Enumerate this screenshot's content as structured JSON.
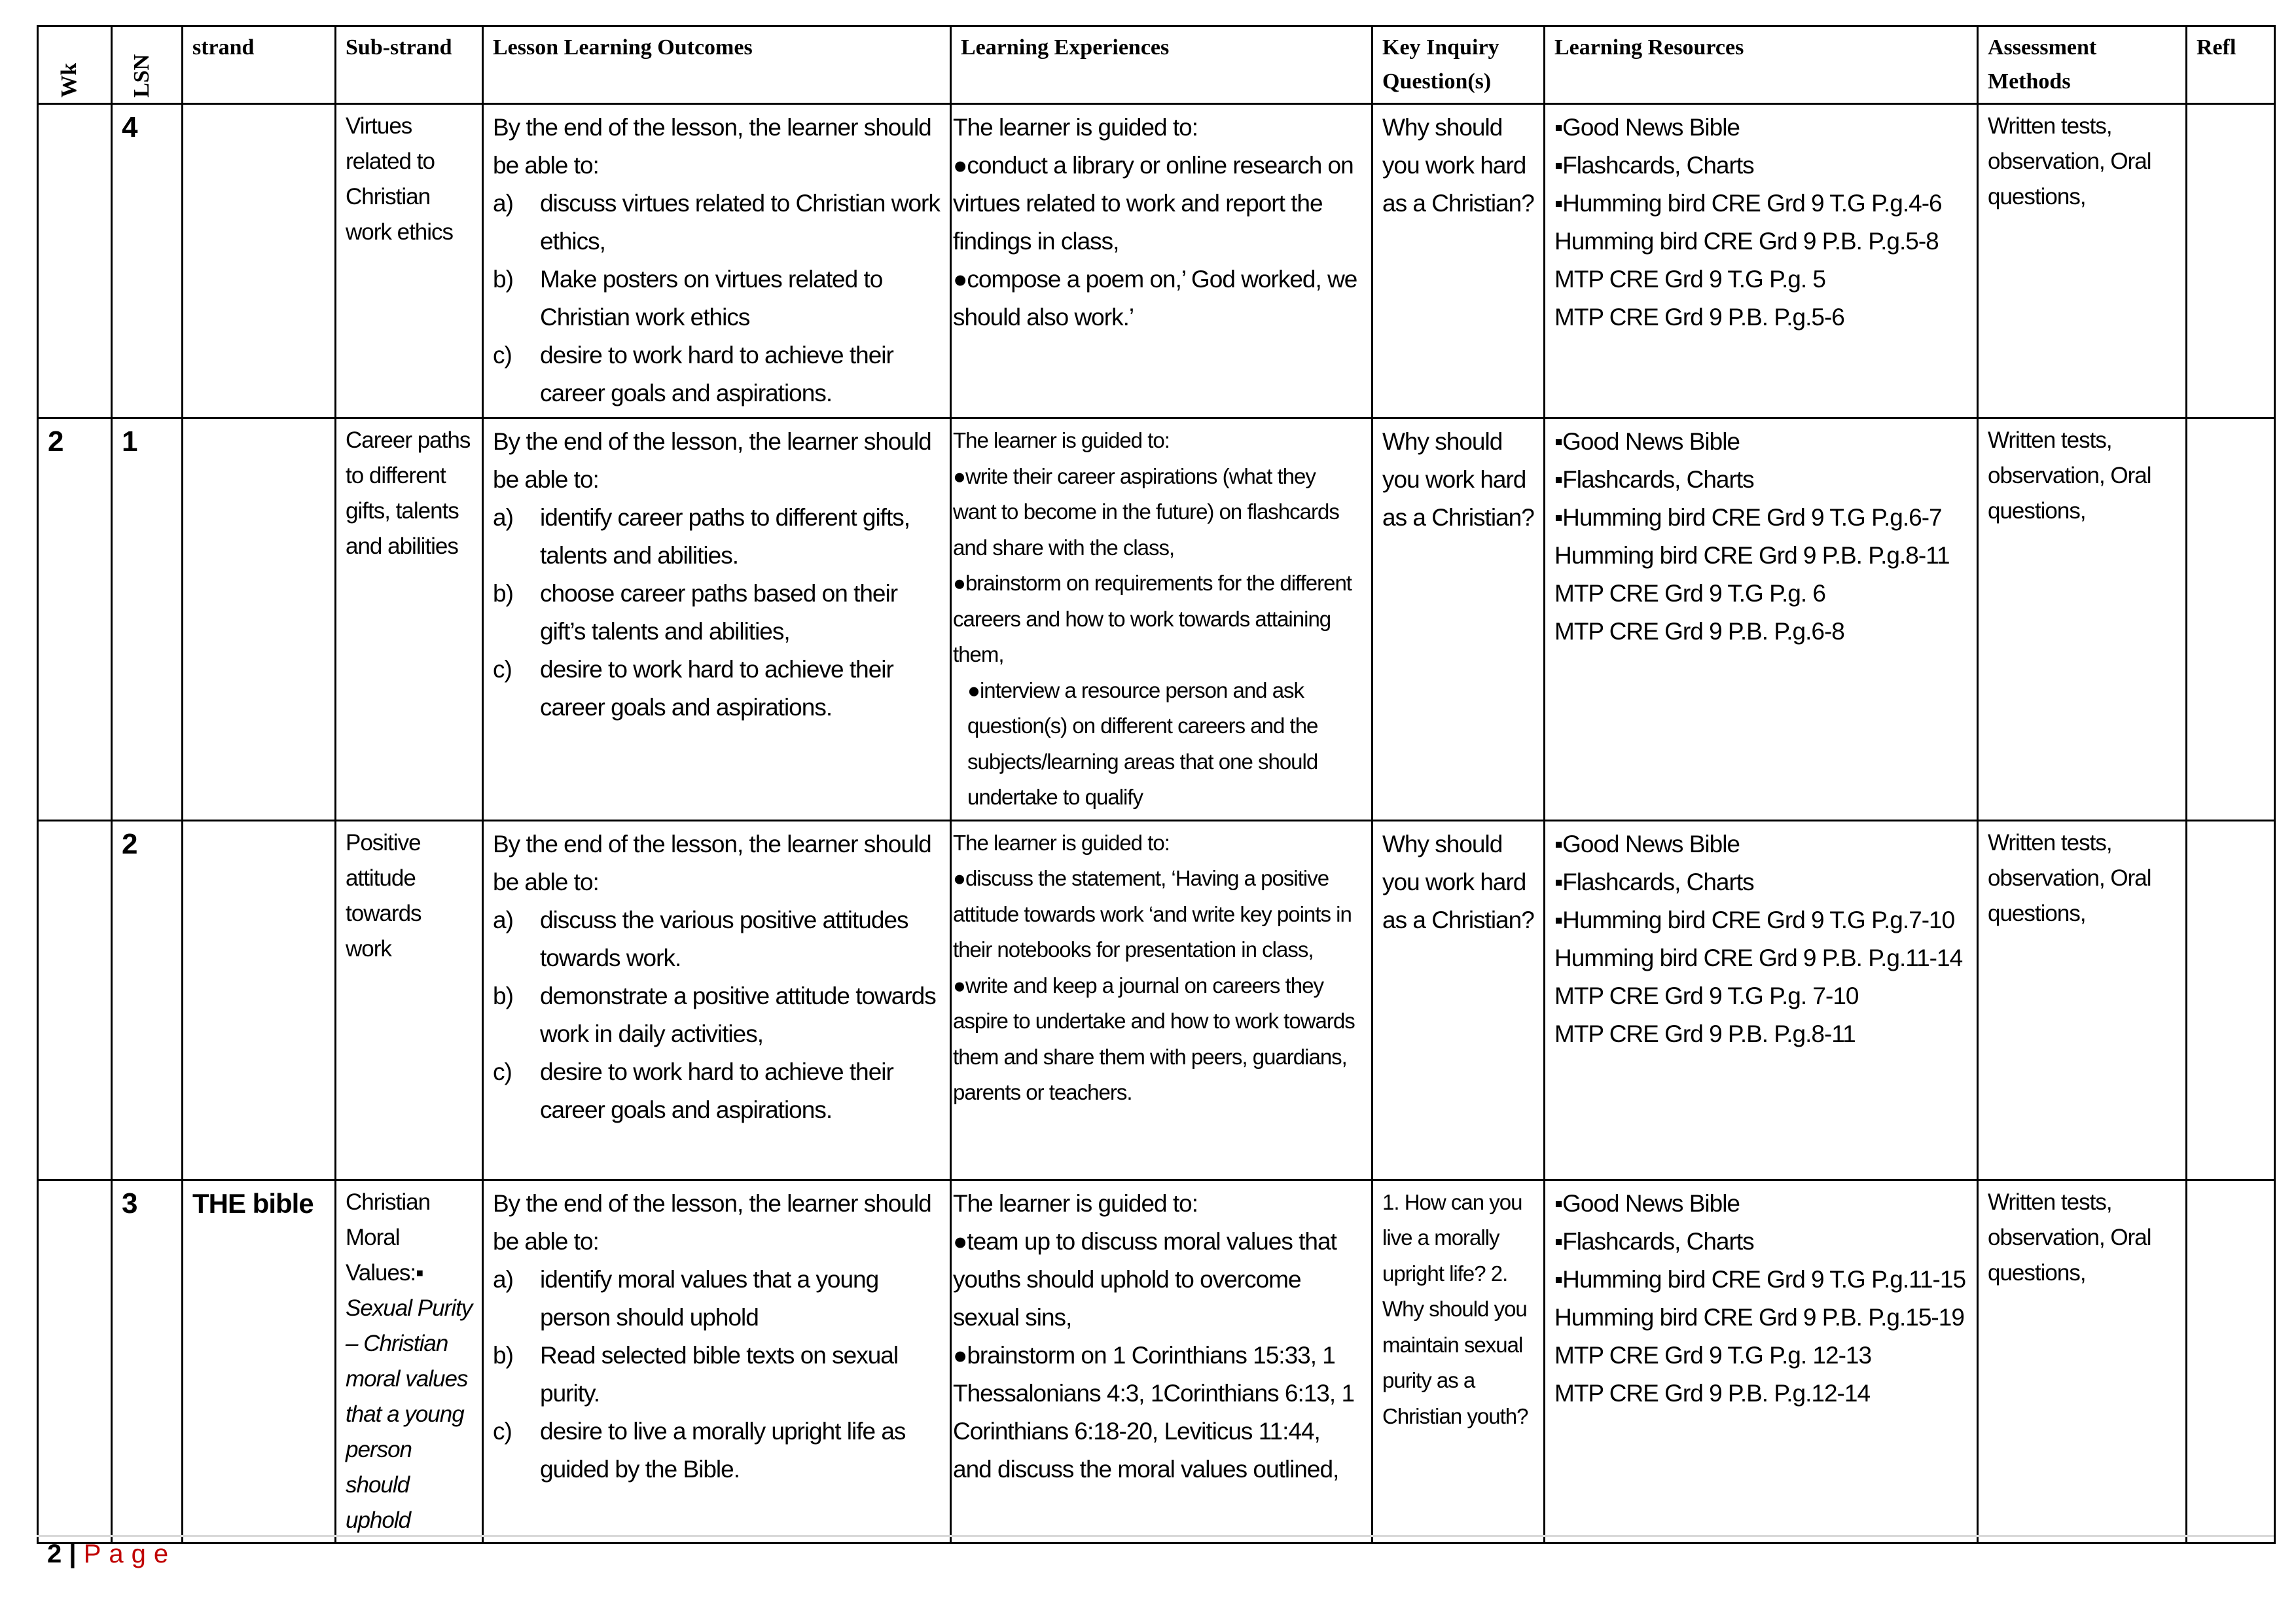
{
  "headers": [
    "Wk",
    "LSN",
    "strand",
    "Sub-strand",
    "Lesson Learning Outcomes",
    "Learning Experiences",
    "Key Inquiry Question(s)",
    "Learning Resources",
    "Assessment Methods",
    "Refl"
  ],
  "rows": [
    {
      "wk": "",
      "lsn": "4",
      "strand": "",
      "substrand": [
        "Virtues related to Christian work ethics"
      ],
      "lo_intro": "By the end of the lesson, the learner should be able to:",
      "lo": [
        {
          "l": "a)",
          "t": "discuss virtues related to Christian work ethics,"
        },
        {
          "l": "b)",
          "t": "Make posters on virtues related to Christian work ethics"
        },
        {
          "l": "c)",
          "t": "desire to work hard to achieve their career goals and aspirations."
        }
      ],
      "le_intro": "The learner is guided to:",
      "le": [
        "conduct a library or online research on virtues related to work and report the findings in class,",
        "compose a poem on,’ God worked, we should also work.’"
      ],
      "kiq": "Why should you work hard as a Christian?",
      "res_bullets": [
        "Good News Bible",
        "Flashcards, Charts",
        "Humming bird CRE Grd 9 T.G P.g.4-6"
      ],
      "res_lines": [
        "Humming bird CRE Grd 9 P.B. P.g.5-8",
        "MTP  CRE Grd 9 T.G P.g. 5",
        "MTP  CRE Grd 9 P.B. P.g.5-6"
      ],
      "assess": "Written tests, observation, Oral questions,"
    },
    {
      "wk": "2",
      "lsn": "1",
      "strand": "",
      "substrand": [
        "Career paths to different gifts, talents and abilities"
      ],
      "lo_intro": "By the end of the lesson, the learner should be able to:",
      "lo": [
        {
          "l": "a)",
          "t": "identify career paths to different gifts, talents and abilities."
        },
        {
          "l": "b)",
          "t": "choose career paths based on their gift’s talents and abilities,"
        },
        {
          "l": "c)",
          "t": "desire to work hard to achieve their career goals and aspirations."
        }
      ],
      "le_intro": "The learner is guided to:",
      "le": [
        "write their career aspirations (what they want to become in the future) on flashcards and share with the class,",
        "brainstorm on requirements for the different careers and how to work towards attaining them,"
      ],
      "le_indent": "interview a resource person and ask question(s) on different careers and the subjects/learning areas that one should undertake to qualify",
      "kiq": "Why should you work hard as a Christian?",
      "res_bullets": [
        "Good News Bible",
        "Flashcards, Charts",
        "Humming bird CRE Grd 9 T.G P.g.6-7"
      ],
      "res_lines": [
        "Humming bird CRE Grd 9 P.B. P.g.8-11",
        "MTP  CRE Grd 9 T.G P.g. 6",
        "MTP  CRE Grd 9 P.B. P.g.6-8"
      ],
      "assess": "Written tests, observation, Oral questions,"
    },
    {
      "wk": "",
      "lsn": "2",
      "strand": "",
      "substrand": [
        "Positive attitude towards work"
      ],
      "lo_intro": "By the end of the lesson, the learner should be able to:",
      "lo": [
        {
          "l": "a)",
          "t": "discuss the various positive attitudes towards work."
        },
        {
          "l": "b)",
          "t": "demonstrate a positive attitude towards work in daily activities,"
        },
        {
          "l": "c)",
          "t": "desire to work hard to achieve their career goals and aspirations."
        }
      ],
      "le_intro": "The learner is guided to:",
      "le": [
        "discuss the statement, ‘Having a positive attitude towards work ‘and write key points in their notebooks for presentation in class,",
        "write and keep a journal on careers they aspire to undertake and how to work towards them and share them with peers, guardians, parents or  teachers."
      ],
      "kiq": "Why should you work hard as a Christian?",
      "res_bullets": [
        "Good News Bible",
        "Flashcards, Charts",
        "Humming bird CRE Grd 9 T.G P.g.7-10"
      ],
      "res_lines": [
        "Humming bird CRE Grd 9 P.B. P.g.11-14",
        "MTP  CRE Grd 9 T.G P.g. 7-10",
        "MTP  CRE Grd 9 P.B. P.g.8-11"
      ],
      "assess": "Written tests, observation, Oral questions,"
    },
    {
      "wk": "",
      "lsn": "3",
      "strand": "THE bible",
      "substrand": [
        "Christian Moral Values:▪"
      ],
      "substrand_italic": "Sexual Purity – Christian moral values that a young person should uphold",
      "lo_intro": "By the end of the lesson, the learner should be able to:",
      "lo": [
        {
          "l": "a)",
          "t": "identify moral values that a young person should uphold"
        },
        {
          "l": "b)",
          "t": "Read selected bible texts on sexual purity."
        },
        {
          "l": "c)",
          "t": "desire to live a morally upright life as guided by the Bible."
        }
      ],
      "le_intro": "The learner is guided to:",
      "le": [
        "team up to discuss moral values that youths should uphold to overcome sexual sins,",
        "brainstorm on 1 Corinthians 15:33, 1 Thessalonians 4:3, 1Corinthians 6:13, 1 Corinthians 6:18-20, Leviticus 11:44, and discuss the moral values  outlined,"
      ],
      "kiq": "1. How can you live a morally upright life? 2. Why should you maintain sexual purity as a Christian youth?",
      "res_bullets": [
        "Good News Bible",
        "Flashcards, Charts",
        "Humming bird CRE Grd 9 T.G P.g.11-15"
      ],
      "res_lines": [
        "Humming bird CRE Grd 9 P.B. P.g.15-19",
        "MTP  CRE Grd 9 T.G P.g. 12-13",
        "MTP  CRE Grd 9 P.B. P.g.12-14"
      ],
      "assess": "Written tests, observation, Oral questions,"
    }
  ],
  "footer": {
    "page_number": "2",
    "separator": "|",
    "page_label": "Page"
  }
}
